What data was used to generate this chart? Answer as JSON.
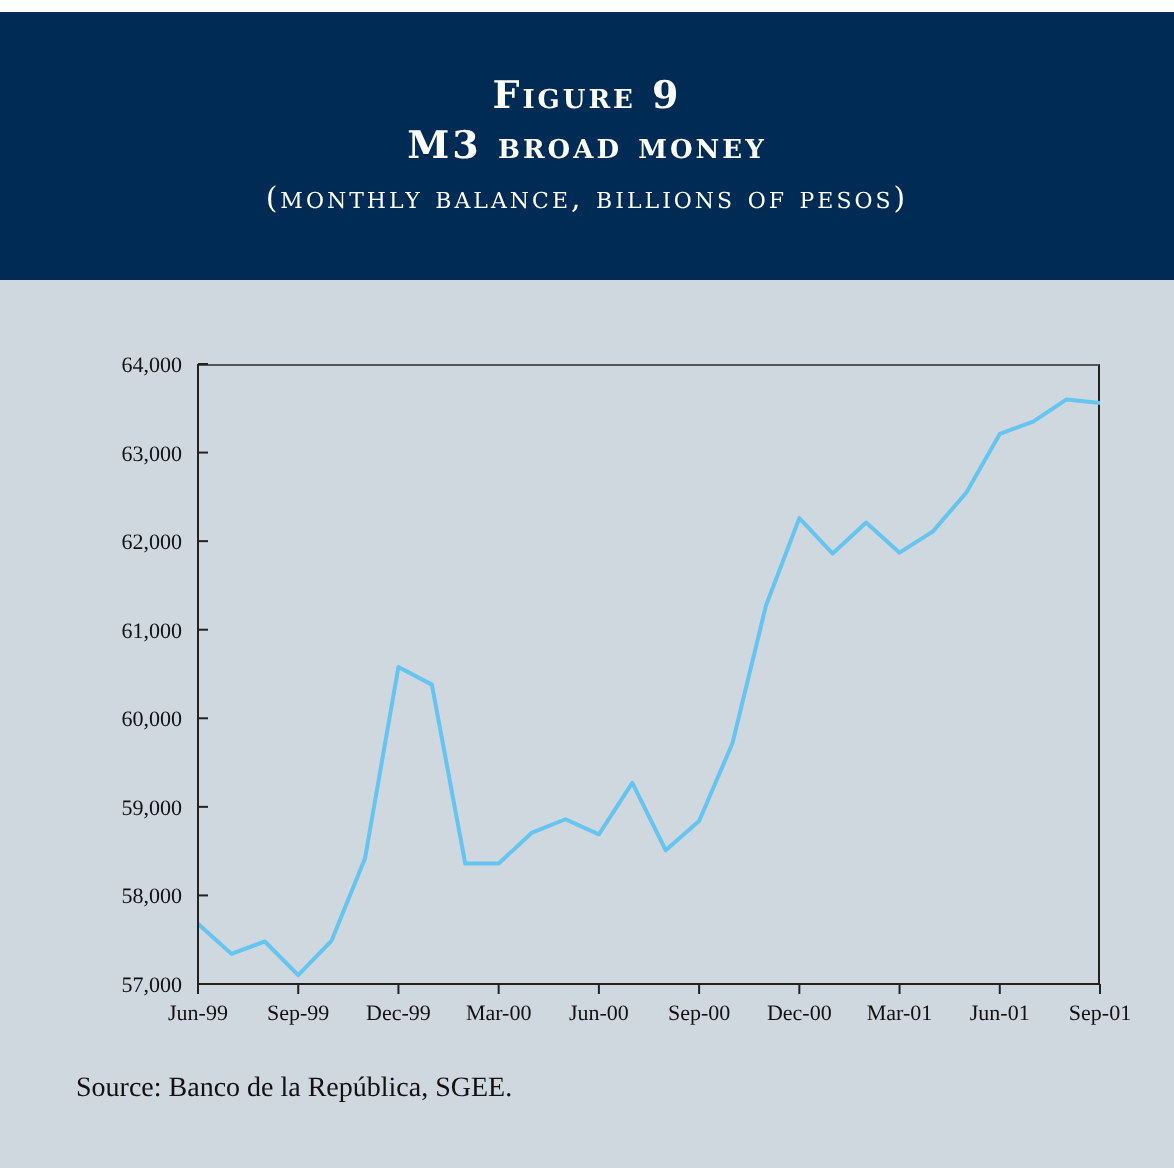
{
  "chart_data": {
    "type": "line",
    "title": "Figure 9\nM3 broad money",
    "subtitle": "(monthly balance, billions of pesos)",
    "categories": [
      "Jun-99",
      null,
      null,
      "Sep-99",
      null,
      null,
      "Dec-99",
      null,
      null,
      "Mar-00",
      null,
      null,
      "Jun-00",
      null,
      null,
      "Sep-00",
      null,
      null,
      "Dec-00",
      null,
      null,
      "Mar-01",
      null,
      null,
      "Jun-01",
      null,
      null,
      "Sep-01"
    ],
    "series": [
      {
        "color": "#66c4f0",
        "values": [
          57680,
          57340,
          57480,
          57100,
          57490,
          58420,
          60580,
          60380,
          58360,
          58360,
          58710,
          58860,
          58690,
          59270,
          58510,
          58840,
          59720,
          61270,
          62260,
          61860,
          62210,
          61870,
          62110,
          62550,
          63210,
          63350,
          63600,
          63560
        ]
      }
    ],
    "ylim": [
      57000,
      64000
    ],
    "yticks": [
      {
        "value": 57000,
        "label": "57,000"
      },
      {
        "value": 58000,
        "label": "58,000"
      },
      {
        "value": 59000,
        "label": "59,000"
      },
      {
        "value": 60000,
        "label": "60,000"
      },
      {
        "value": 61000,
        "label": "61,000"
      },
      {
        "value": 62000,
        "label": "62,000"
      },
      {
        "value": 63000,
        "label": "63,000"
      },
      {
        "value": 64000,
        "label": "64,000"
      }
    ],
    "grid": false,
    "legend": false,
    "marker": "none",
    "line_style": "solid",
    "annotations": [
      "Source: Banco de la República, SGEE."
    ]
  }
}
